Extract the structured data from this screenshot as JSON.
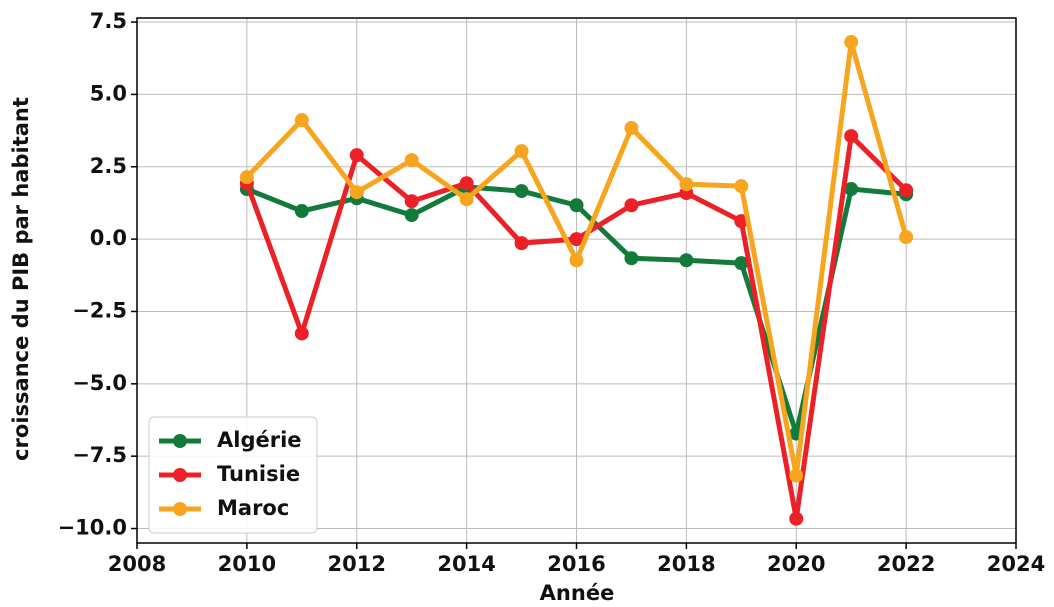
{
  "chart_data": {
    "type": "line",
    "x_label": "Année",
    "y_label": "croissance du PIB par habitant",
    "x": [
      2010,
      2011,
      2012,
      2013,
      2014,
      2015,
      2016,
      2017,
      2018,
      2019,
      2020,
      2021,
      2022
    ],
    "series": [
      {
        "name": "Algérie",
        "color": "#127a3a",
        "values": [
          1.73,
          0.97,
          1.41,
          0.83,
          1.8,
          1.66,
          1.17,
          -0.66,
          -0.73,
          -0.83,
          -6.72,
          1.73,
          1.55
        ]
      },
      {
        "name": "Tunisie",
        "color": "#ec2127",
        "values": [
          1.93,
          -3.26,
          2.9,
          1.31,
          1.93,
          -0.14,
          0.0,
          1.17,
          1.59,
          0.62,
          -9.66,
          3.56,
          1.69
        ]
      },
      {
        "name": "Maroc",
        "color": "#f7a51e",
        "values": [
          2.14,
          4.11,
          1.62,
          2.73,
          1.38,
          3.04,
          -0.73,
          3.84,
          1.9,
          1.83,
          -8.17,
          6.81,
          0.07
        ]
      }
    ],
    "xlim": [
      2008,
      2024
    ],
    "xticks": [
      2008,
      2010,
      2012,
      2014,
      2016,
      2018,
      2020,
      2022,
      2024
    ],
    "ylim": [
      -10.5,
      7.64
    ],
    "yticks": [
      {
        "value": -10,
        "label": "−10.0"
      },
      {
        "value": -7.5,
        "label": "−7.5"
      },
      {
        "value": -5,
        "label": "−5.0"
      },
      {
        "value": -2.5,
        "label": "−2.5"
      },
      {
        "value": 0,
        "label": "0.0"
      },
      {
        "value": 2.5,
        "label": "2.5"
      },
      {
        "value": 5,
        "label": "5.0"
      },
      {
        "value": 7.5,
        "label": "7.5"
      }
    ],
    "grid": true,
    "legend": "lower left"
  }
}
